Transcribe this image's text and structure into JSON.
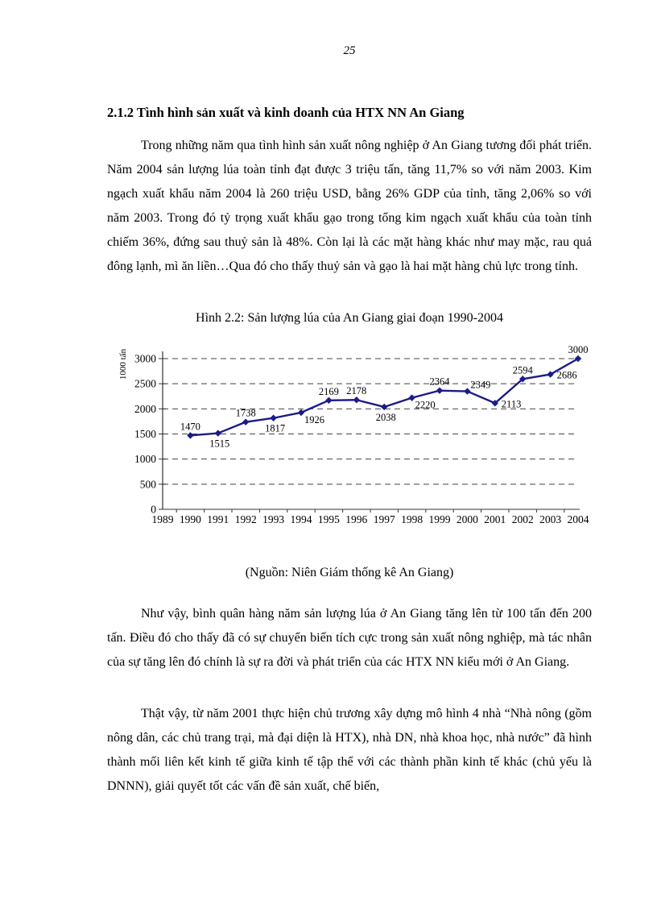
{
  "page": {
    "number": "25",
    "heading": "2.1.2 Tình hình sản xuất và kinh doanh của HTX NN An Giang",
    "paragraph1": "Trong những năm qua tình hình sản xuất nông nghiệp ở An Giang tương đối phát triển. Năm 2004 sản lượng lúa toàn tỉnh đạt được 3 triệu tấn, tăng 11,7% so với năm 2003. Kim ngạch xuất khẩu năm 2004 là 260 triệu USD, bằng 26% GDP của tỉnh, tăng 2,06% so với năm 2003. Trong đó tỷ trọng xuất khẩu gạo trong tổng kim ngạch xuất khẩu của toàn tỉnh chiếm 36%, đứng sau thuỷ sản là 48%. Còn lại là các mặt hàng khác như may mặc, rau quả đông lạnh, mì ăn liền…Qua đó cho thấy thuỷ sản và gạo là hai mặt hàng chủ lực trong tỉnh.",
    "figure_caption": "Hình 2.2: Sản lượng lúa của An Giang giai đoạn 1990-2004",
    "source_note": "(Nguồn: Niên Giám thống kê An Giang)",
    "paragraph2": "Như vậy, bình quân hàng năm sản lượng lúa ở An Giang tăng lên từ 100 tấn đến 200 tấn. Điều đó cho thấy đã có sự chuyển biến tích cực trong sản xuất nông nghiệp, mà tác nhân của sự tăng lên đó chính là sự ra đời và phát triển của các HTX NN kiểu mới ở An Giang.",
    "paragraph3": "Thật vậy, từ năm 2001 thực hiện chủ trương xây dựng mô hình 4 nhà “Nhà nông (gồm nông dân, các chủ trang trại, mà đại diện là HTX), nhà DN, nhà khoa học, nhà nước” đã hình thành mối liên kết kinh tế giữa kinh tế tập thể với các thành phần kinh tế khác (chủ yếu là DNNN), giải quyết tốt các vấn đề sản xuất, chế biến,"
  },
  "chart_data": {
    "type": "line",
    "title": "Hình 2.2: Sản lượng lúa của An Giang giai đoạn 1990-2004",
    "xlabel": "",
    "ylabel": "1000 tấn",
    "axis_years": [
      1989,
      1990,
      1991,
      1992,
      1993,
      1994,
      1995,
      1996,
      1997,
      1998,
      1999,
      2000,
      2001,
      2002,
      2003,
      2004
    ],
    "x": [
      1990,
      1991,
      1992,
      1993,
      1994,
      1995,
      1996,
      1997,
      1998,
      1999,
      2000,
      2001,
      2002,
      2003,
      2004
    ],
    "values": [
      1470,
      1515,
      1738,
      1817,
      1926,
      2169,
      2178,
      2038,
      2220,
      2364,
      2349,
      2113,
      2594,
      2686,
      3000
    ],
    "label_positions": [
      "above",
      "below",
      "above",
      "below",
      "below-right",
      "above",
      "above",
      "below",
      "below-right",
      "above",
      "above-right",
      "right",
      "above",
      "right",
      "above"
    ],
    "ylim": [
      0,
      3000
    ],
    "ytick_step": 500,
    "grid": "dashed-horizontal",
    "legend": "none",
    "line_color": "#1b1b8a",
    "marker": "diamond",
    "grid_color": "#444444",
    "axis_color": "#333333"
  }
}
